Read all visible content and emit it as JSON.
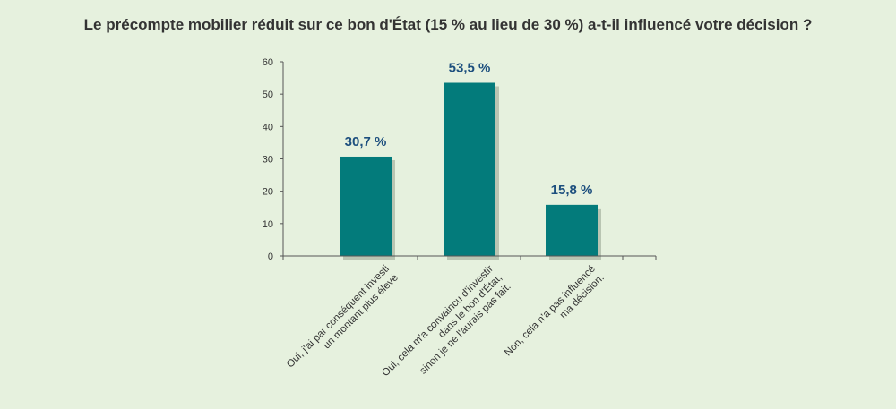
{
  "chart_data": {
    "type": "bar",
    "title": "Le précompte mobilier réduit sur ce bon d'État (15 % au lieu de 30 %) a-t-il influencé votre décision ?",
    "categories": [
      [
        "Oui, j'ai par conséquent investi",
        "un montant plus élevé"
      ],
      [
        "Oui, cela m'a convaincu d'investir",
        "dans le bon d'État,",
        "sinon je ne l'aurais pas fait."
      ],
      [
        "Non, cela n'a pas influencé",
        "ma décision."
      ]
    ],
    "values": [
      30.7,
      53.5,
      15.8
    ],
    "data_labels": [
      "30,7 %",
      "53,5 %",
      "15,8 %"
    ],
    "ylim": [
      0,
      60
    ],
    "yticks": [
      0,
      10,
      20,
      30,
      40,
      50,
      60
    ],
    "xlabel": "",
    "ylabel": "",
    "grid": false,
    "colors": {
      "background": "#e6f1de",
      "bar": "#037b7b",
      "bar_shadow": "#b9c5b2",
      "data_label": "#1d4f7e",
      "text": "#333333",
      "axis": "#555555"
    }
  }
}
